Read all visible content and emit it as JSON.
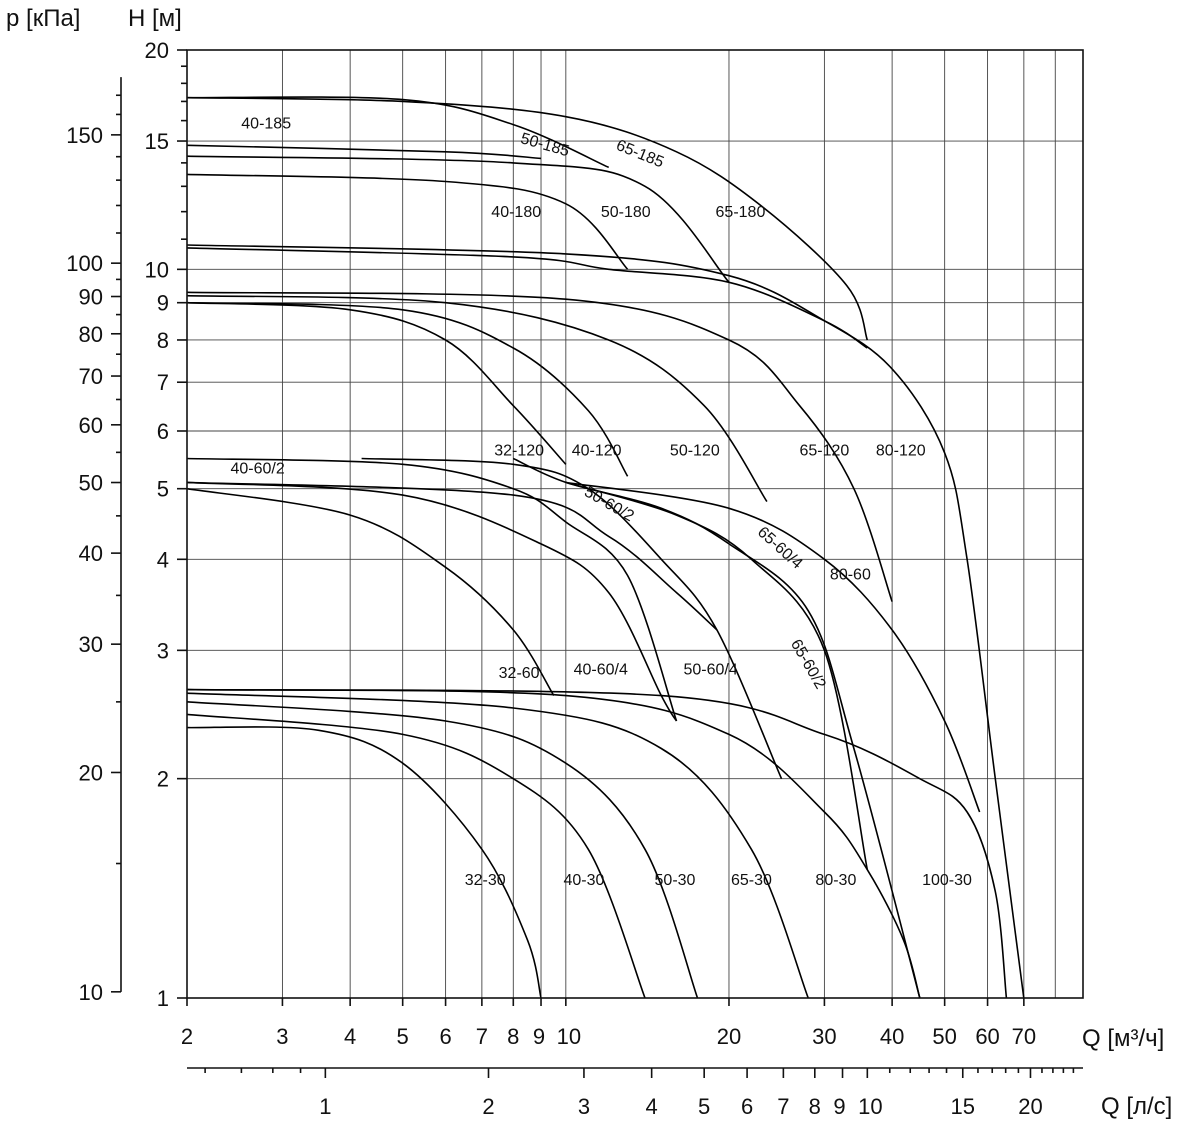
{
  "chart_data": {
    "type": "line",
    "title": "",
    "x_axis": {
      "label_letter": "Q",
      "label_unit": "[м³/ч]",
      "scale": "log",
      "range": [
        2,
        90
      ],
      "ticks": [
        2,
        3,
        4,
        5,
        6,
        7,
        8,
        9,
        10,
        20,
        30,
        40,
        50,
        60,
        70
      ],
      "tick_labels": [
        "2",
        "3",
        "4",
        "5",
        "6",
        "7",
        "8",
        "9",
        "10",
        "20",
        "30",
        "40",
        "50",
        "60",
        "70"
      ]
    },
    "x2_axis": {
      "label_letter": "Q",
      "label_unit": "[л/с]",
      "scale": "log",
      "ticks": [
        1,
        2,
        3,
        4,
        5,
        6,
        7,
        8,
        9,
        10,
        15,
        20
      ],
      "tick_labels": [
        "1",
        "2",
        "3",
        "4",
        "5",
        "6",
        "7",
        "8",
        "9",
        "10",
        "15",
        "20"
      ]
    },
    "y_axis": {
      "label_letter": "H",
      "label_unit": "[м]",
      "scale": "log",
      "range": [
        1,
        20
      ],
      "ticks": [
        1,
        2,
        3,
        4,
        5,
        6,
        7,
        8,
        9,
        10,
        15,
        20
      ],
      "tick_labels": [
        "1",
        "2",
        "3",
        "4",
        "5",
        "6",
        "7",
        "8",
        "9",
        "10",
        "15",
        "20"
      ]
    },
    "y2_axis": {
      "label_letter": "p",
      "label_unit": "[кПа]",
      "scale": "log",
      "ticks": [
        10,
        20,
        30,
        40,
        50,
        60,
        70,
        80,
        90,
        100,
        150
      ],
      "tick_labels": [
        "10",
        "20",
        "30",
        "40",
        "50",
        "60",
        "70",
        "80",
        "90",
        "100",
        "150"
      ]
    },
    "grid": true,
    "series": [
      {
        "name": "32-30",
        "label_at": [
          7.1,
          1.43
        ],
        "points": [
          [
            2,
            2.35
          ],
          [
            3.5,
            2.33
          ],
          [
            5,
            2.1
          ],
          [
            7,
            1.6
          ],
          [
            8.5,
            1.2
          ],
          [
            9,
            1.0
          ]
        ]
      },
      {
        "name": "40-30",
        "label_at": [
          10.8,
          1.43
        ],
        "points": [
          [
            2,
            2.45
          ],
          [
            5,
            2.3
          ],
          [
            8,
            2.0
          ],
          [
            11,
            1.6
          ],
          [
            14,
            1.0
          ]
        ]
      },
      {
        "name": "50-30",
        "label_at": [
          15.9,
          1.43
        ],
        "points": [
          [
            2,
            2.55
          ],
          [
            6,
            2.4
          ],
          [
            10,
            2.1
          ],
          [
            14,
            1.6
          ],
          [
            17.5,
            1.0
          ]
        ]
      },
      {
        "name": "65-30",
        "label_at": [
          22,
          1.43
        ],
        "points": [
          [
            2,
            2.62
          ],
          [
            8,
            2.5
          ],
          [
            15,
            2.2
          ],
          [
            22,
            1.6
          ],
          [
            28,
            1.0
          ]
        ]
      },
      {
        "name": "80-30",
        "label_at": [
          31.5,
          1.43
        ],
        "points": [
          [
            2,
            2.65
          ],
          [
            10,
            2.6
          ],
          [
            20,
            2.3
          ],
          [
            30,
            1.8
          ],
          [
            36,
            1.5
          ],
          [
            42,
            1.2
          ],
          [
            45,
            1.0
          ]
        ]
      },
      {
        "name": "100-30",
        "label_at": [
          50.5,
          1.43
        ],
        "points": [
          [
            2,
            2.65
          ],
          [
            15,
            2.6
          ],
          [
            30,
            2.3
          ],
          [
            45,
            2.0
          ],
          [
            55,
            1.8
          ],
          [
            62,
            1.4
          ],
          [
            65,
            1.0
          ]
        ]
      },
      {
        "name": "32-60",
        "label_at": [
          8.2,
          2.75
        ],
        "points": [
          [
            2,
            5.0
          ],
          [
            4,
            4.6
          ],
          [
            6,
            3.9
          ],
          [
            8,
            3.2
          ],
          [
            9.5,
            2.6
          ]
        ]
      },
      {
        "name": "40-60/2",
        "label_at": [
          2.7,
          5.25
        ],
        "points": [
          [
            2,
            5.5
          ],
          [
            5,
            5.4
          ],
          [
            8,
            5.0
          ],
          [
            10,
            4.5
          ],
          [
            13,
            3.8
          ],
          [
            16,
            2.4
          ]
        ]
      },
      {
        "name": "40-60/4",
        "label_at": [
          11.6,
          2.78
        ],
        "points": [
          [
            2,
            5.1
          ],
          [
            5,
            4.9
          ],
          [
            9,
            4.2
          ],
          [
            12,
            3.6
          ],
          [
            15,
            2.6
          ],
          [
            16,
            2.4
          ]
        ]
      },
      {
        "name": "50-60/2",
        "label_at": [
          11.9,
          4.7
        ],
        "rotate": 30,
        "points": [
          [
            2,
            5.1
          ],
          [
            8,
            4.9
          ],
          [
            12,
            4.3
          ],
          [
            16,
            3.6
          ],
          [
            19,
            3.2
          ]
        ]
      },
      {
        "name": "50-60/4",
        "label_at": [
          18.5,
          2.78
        ],
        "points": [
          [
            4.2,
            5.5
          ],
          [
            8,
            5.4
          ],
          [
            11,
            5.0
          ],
          [
            15,
            4.0
          ],
          [
            19,
            3.2
          ],
          [
            25,
            2.0
          ]
        ]
      },
      {
        "name": "65-60/4",
        "label_at": [
          24.5,
          4.1
        ],
        "rotate": 42,
        "points": [
          [
            8,
            5.5
          ],
          [
            10,
            5.1
          ],
          [
            15,
            4.7
          ],
          [
            20,
            4.2
          ],
          [
            28,
            3.4
          ],
          [
            34,
            2.2
          ],
          [
            45,
            1.0
          ]
        ]
      },
      {
        "name": "65-60/2",
        "label_at": [
          27.5,
          2.85
        ],
        "rotate": 60,
        "points": [
          [
            10,
            5.1
          ],
          [
            16,
            4.6
          ],
          [
            22,
            4.0
          ],
          [
            30,
            3.0
          ],
          [
            36,
            1.5
          ]
        ]
      },
      {
        "name": "80-60",
        "label_at": [
          33.5,
          3.75
        ],
        "points": [
          [
            10,
            5.1
          ],
          [
            20,
            4.7
          ],
          [
            30,
            4.0
          ],
          [
            40,
            3.2
          ],
          [
            50,
            2.4
          ],
          [
            58,
            1.8
          ]
        ]
      },
      {
        "name": "32-120",
        "label_at": [
          8.2,
          5.55
        ],
        "points": [
          [
            2,
            9.0
          ],
          [
            4,
            8.8
          ],
          [
            6,
            8.0
          ],
          [
            8,
            6.5
          ],
          [
            10,
            5.4
          ]
        ]
      },
      {
        "name": "40-120",
        "label_at": [
          11.4,
          5.55
        ],
        "points": [
          [
            2,
            9.0
          ],
          [
            5,
            8.8
          ],
          [
            8,
            7.8
          ],
          [
            11,
            6.4
          ],
          [
            13,
            5.2
          ]
        ]
      },
      {
        "name": "50-120",
        "label_at": [
          17.3,
          5.55
        ],
        "points": [
          [
            2,
            9.2
          ],
          [
            6,
            9.0
          ],
          [
            12,
            8.0
          ],
          [
            18,
            6.5
          ],
          [
            23.5,
            4.8
          ]
        ]
      },
      {
        "name": "65-120",
        "label_at": [
          30,
          5.55
        ],
        "points": [
          [
            2,
            9.3
          ],
          [
            10,
            9.1
          ],
          [
            20,
            8.0
          ],
          [
            27,
            6.5
          ],
          [
            34,
            5.0
          ],
          [
            40,
            3.5
          ]
        ]
      },
      {
        "name": "80-120",
        "label_at": [
          41.5,
          5.55
        ],
        "points": [
          [
            2,
            10.8
          ],
          [
            10,
            10.5
          ],
          [
            20,
            9.8
          ],
          [
            30,
            8.5
          ],
          [
            40,
            7.3
          ],
          [
            50,
            5.6
          ],
          [
            55,
            4.0
          ],
          [
            62,
            2.0
          ],
          [
            70,
            1.0
          ]
        ]
      },
      {
        "name": "40-180",
        "label_at": [
          8.1,
          11.8
        ],
        "points": [
          [
            2,
            10.7
          ],
          [
            8,
            10.4
          ],
          [
            12,
            10.0
          ],
          [
            20,
            9.6
          ],
          [
            30,
            8.5
          ],
          [
            36,
            7.8
          ]
        ]
      },
      {
        "name": "50-180",
        "label_at": [
          12.9,
          11.8
        ],
        "points": [
          [
            2,
            13.5
          ],
          [
            6,
            13.2
          ],
          [
            10,
            12.3
          ],
          [
            13,
            10.0
          ]
        ]
      },
      {
        "name": "65-180",
        "label_at": [
          21,
          11.8
        ],
        "points": [
          [
            2,
            14.3
          ],
          [
            8,
            14.0
          ],
          [
            14,
            13.0
          ],
          [
            20,
            9.6
          ]
        ]
      },
      {
        "name": "40-185",
        "label_at": [
          2.8,
          15.6
        ],
        "points": [
          [
            2,
            14.8
          ],
          [
            6,
            14.5
          ],
          [
            9,
            14.2
          ]
        ]
      },
      {
        "name": "50-185",
        "label_at": [
          9.1,
          14.6
        ],
        "rotate": 16,
        "points": [
          [
            2,
            17.2
          ],
          [
            5,
            17.1
          ],
          [
            8,
            15.8
          ],
          [
            12,
            13.8
          ]
        ]
      },
      {
        "name": "65-185",
        "label_at": [
          13.6,
          14.2
        ],
        "rotate": 22,
        "points": [
          [
            2,
            17.2
          ],
          [
            5,
            17.0
          ],
          [
            10,
            16.2
          ],
          [
            16,
            14.5
          ],
          [
            23,
            12.2
          ],
          [
            33,
            9.5
          ],
          [
            36,
            8.0
          ]
        ]
      }
    ]
  }
}
